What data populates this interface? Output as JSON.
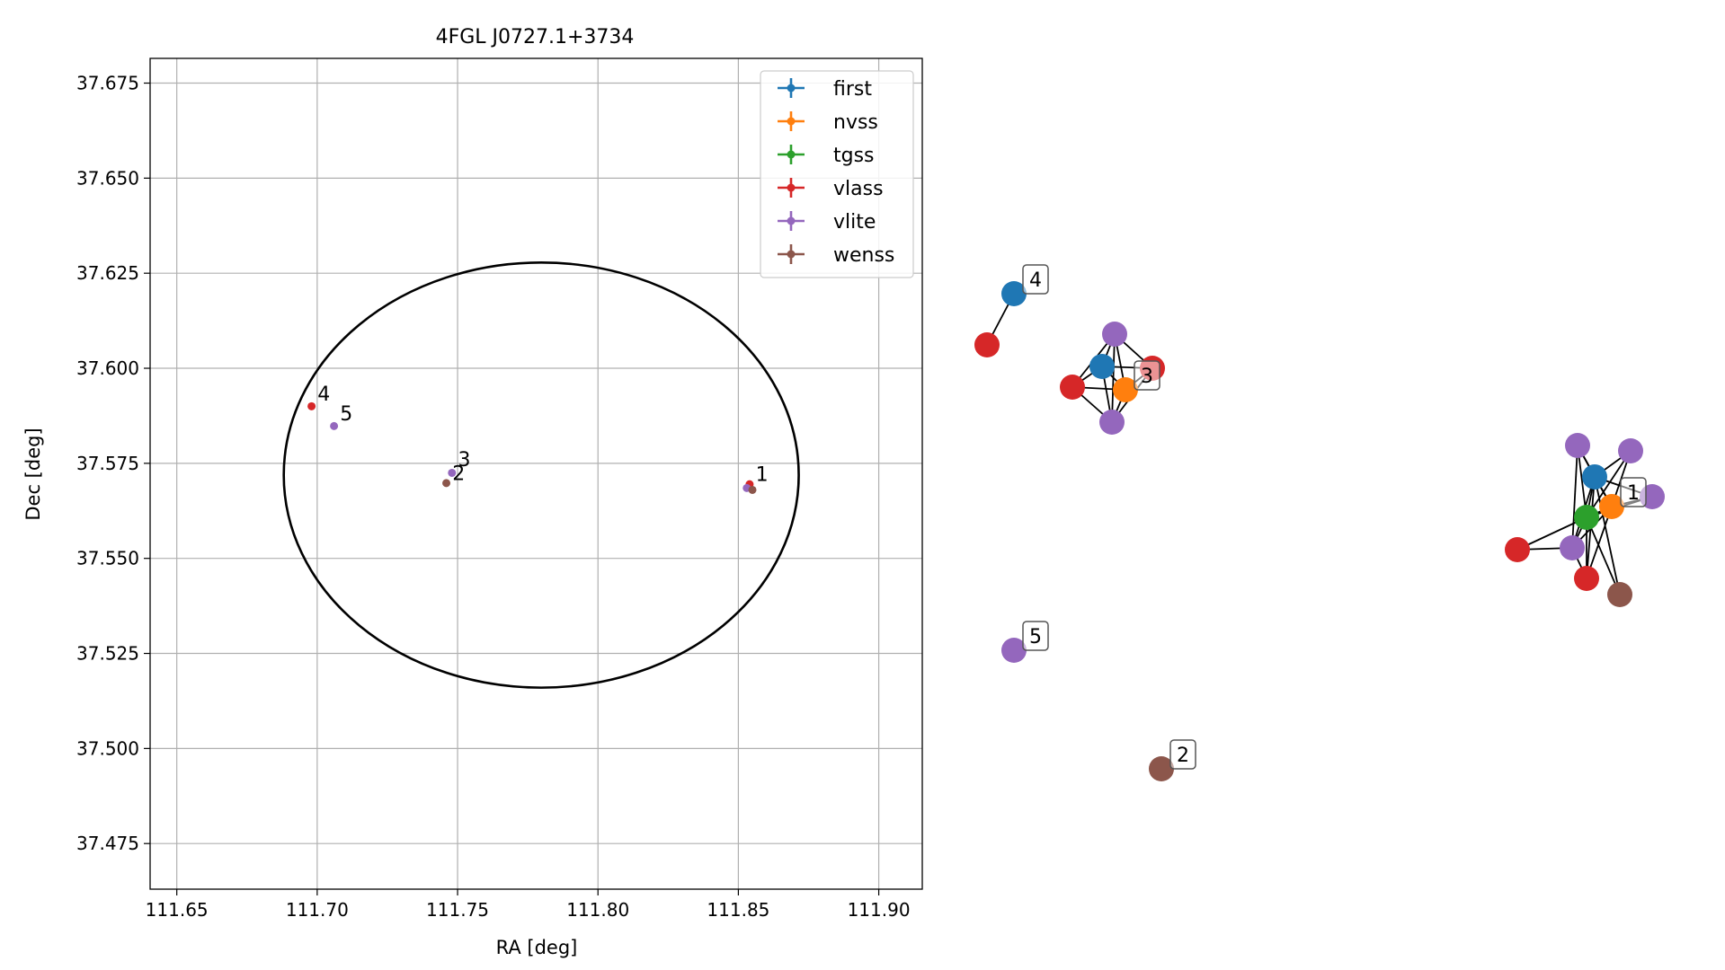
{
  "chart_data": [
    {
      "type": "scatter",
      "title": "4FGL J0727.1+3734",
      "xlabel": "RA [deg]",
      "ylabel": "Dec [deg]",
      "xlim": [
        111.6405,
        111.9155
      ],
      "ylim": [
        37.463,
        37.6815
      ],
      "xticks": [
        "111.65",
        "111.70",
        "111.75",
        "111.80",
        "111.85",
        "111.90"
      ],
      "yticks": [
        "37.475",
        "37.500",
        "37.525",
        "37.550",
        "37.575",
        "37.600",
        "37.625",
        "37.650",
        "37.675"
      ],
      "grid": true,
      "legend_position": "top-right",
      "legend": [
        "first",
        "nvss",
        "tgss",
        "vlass",
        "vlite",
        "wenss"
      ],
      "series": [
        {
          "name": "first",
          "color": "#1f77b4",
          "points": []
        },
        {
          "name": "nvss",
          "color": "#ff7f0e",
          "points": []
        },
        {
          "name": "tgss",
          "color": "#2ca02c",
          "points": []
        },
        {
          "name": "vlass",
          "color": "#d62728",
          "points": [
            {
              "x": 111.698,
              "y": 37.59
            },
            {
              "x": 111.854,
              "y": 37.5695
            }
          ]
        },
        {
          "name": "vlite",
          "color": "#9467bd",
          "points": [
            {
              "x": 111.706,
              "y": 37.5848
            },
            {
              "x": 111.748,
              "y": 37.5725
            },
            {
              "x": 111.853,
              "y": 37.5685
            }
          ]
        },
        {
          "name": "wenss",
          "color": "#8c564b",
          "points": [
            {
              "x": 111.746,
              "y": 37.5698
            },
            {
              "x": 111.855,
              "y": 37.568
            }
          ]
        }
      ],
      "ellipse": {
        "cx": 111.7798,
        "cy": 37.5719,
        "rx": 0.0917,
        "ry": 0.0559
      },
      "annotations": [
        {
          "text": "1",
          "x": 111.8555,
          "y": 37.5704
        },
        {
          "text": "2",
          "x": 111.7475,
          "y": 37.5706
        },
        {
          "text": "3",
          "x": 111.7495,
          "y": 37.5742
        },
        {
          "text": "4",
          "x": 111.6995,
          "y": 37.5915
        },
        {
          "text": "5",
          "x": 111.7075,
          "y": 37.5863
        }
      ]
    },
    {
      "type": "network",
      "nodes": [
        {
          "id": "n4a",
          "color": "#1f77b4"
        },
        {
          "id": "n4b",
          "color": "#d62728"
        },
        {
          "id": "n3a",
          "color": "#9467bd"
        },
        {
          "id": "n3b",
          "color": "#1f77b4"
        },
        {
          "id": "n3c",
          "color": "#d62728"
        },
        {
          "id": "n3d",
          "color": "#d62728"
        },
        {
          "id": "n3e",
          "color": "#ff7f0e"
        },
        {
          "id": "n3f",
          "color": "#9467bd"
        },
        {
          "id": "n5",
          "color": "#9467bd"
        },
        {
          "id": "n2",
          "color": "#8c564b"
        },
        {
          "id": "n1a",
          "color": "#9467bd"
        },
        {
          "id": "n1b",
          "color": "#9467bd"
        },
        {
          "id": "n1c",
          "color": "#1f77b4"
        },
        {
          "id": "n1d",
          "color": "#9467bd"
        },
        {
          "id": "n1e",
          "color": "#ff7f0e"
        },
        {
          "id": "n1f",
          "color": "#2ca02c"
        },
        {
          "id": "n1g",
          "color": "#d62728"
        },
        {
          "id": "n1h",
          "color": "#9467bd"
        },
        {
          "id": "n1i",
          "color": "#d62728"
        },
        {
          "id": "n1j",
          "color": "#8c564b"
        }
      ],
      "edges": [
        [
          "n4a",
          "n4b"
        ],
        [
          "n3a",
          "n3b"
        ],
        [
          "n3a",
          "n3c"
        ],
        [
          "n3a",
          "n3d"
        ],
        [
          "n3a",
          "n3e"
        ],
        [
          "n3b",
          "n3c"
        ],
        [
          "n3b",
          "n3d"
        ],
        [
          "n3b",
          "n3e"
        ],
        [
          "n3b",
          "n3f"
        ],
        [
          "n3c",
          "n3e"
        ],
        [
          "n3c",
          "n3f"
        ],
        [
          "n3d",
          "n3e"
        ],
        [
          "n3e",
          "n3f"
        ],
        [
          "n3f",
          "n3a"
        ],
        [
          "n3d",
          "n3f"
        ],
        [
          "n1a",
          "n1c"
        ],
        [
          "n1a",
          "n1f"
        ],
        [
          "n1a",
          "n1h"
        ],
        [
          "n1a",
          "n1e"
        ],
        [
          "n1b",
          "n1c"
        ],
        [
          "n1b",
          "n1f"
        ],
        [
          "n1b",
          "n1e"
        ],
        [
          "n1c",
          "n1d"
        ],
        [
          "n1c",
          "n1e"
        ],
        [
          "n1c",
          "n1f"
        ],
        [
          "n1c",
          "n1h"
        ],
        [
          "n1d",
          "n1e"
        ],
        [
          "n1d",
          "n1f"
        ],
        [
          "n1e",
          "n1f"
        ],
        [
          "n1e",
          "n1h"
        ],
        [
          "n1e",
          "n1i"
        ],
        [
          "n1f",
          "n1g"
        ],
        [
          "n1f",
          "n1h"
        ],
        [
          "n1f",
          "n1i"
        ],
        [
          "n1f",
          "n1j"
        ],
        [
          "n1c",
          "n1i"
        ],
        [
          "n1c",
          "n1j"
        ],
        [
          "n1h",
          "n1g"
        ],
        [
          "n1h",
          "n1i"
        ]
      ],
      "labels": [
        {
          "text": "4",
          "node": "n4a"
        },
        {
          "text": "3",
          "node": "n3e"
        },
        {
          "text": "5",
          "node": "n5"
        },
        {
          "text": "2",
          "node": "n2"
        },
        {
          "text": "1",
          "node": "n1e"
        }
      ]
    }
  ]
}
